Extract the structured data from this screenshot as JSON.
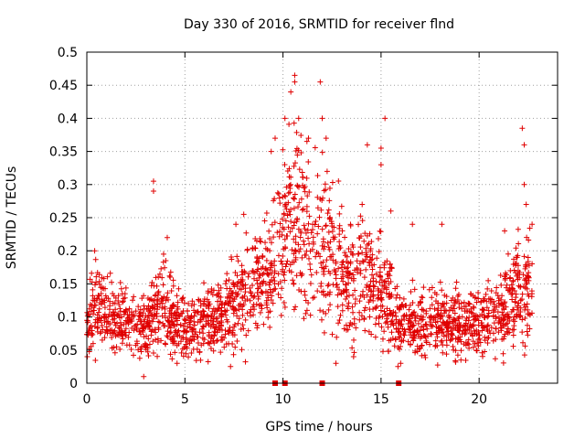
{
  "chart_data": {
    "type": "scatter",
    "title": "Day 330 of 2016, SRMTID for receiver flnd",
    "xlabel": "GPS time / hours",
    "ylabel": "SRMTID / TECUs",
    "xlim": [
      0,
      24
    ],
    "ylim": [
      0,
      0.5
    ],
    "x_ticks": [
      0,
      5,
      10,
      15,
      20
    ],
    "y_ticks": [
      0,
      0.05,
      0.1,
      0.15,
      0.2,
      0.25,
      0.3,
      0.35,
      0.4,
      0.45,
      0.5
    ],
    "grid": true,
    "marker": "+",
    "color": "#e00000",
    "series": [
      {
        "name": "SRMTID",
        "trend": [
          [
            0.0,
            0.09
          ],
          [
            0.5,
            0.12
          ],
          [
            1.0,
            0.1
          ],
          [
            1.5,
            0.095
          ],
          [
            2.0,
            0.1
          ],
          [
            2.5,
            0.09
          ],
          [
            3.0,
            0.08
          ],
          [
            3.5,
            0.11
          ],
          [
            4.0,
            0.12
          ],
          [
            4.5,
            0.09
          ],
          [
            5.0,
            0.085
          ],
          [
            5.5,
            0.09
          ],
          [
            6.0,
            0.1
          ],
          [
            6.5,
            0.1
          ],
          [
            7.0,
            0.11
          ],
          [
            7.5,
            0.12
          ],
          [
            8.0,
            0.13
          ],
          [
            8.5,
            0.15
          ],
          [
            9.0,
            0.15
          ],
          [
            9.5,
            0.18
          ],
          [
            10.0,
            0.22
          ],
          [
            10.5,
            0.26
          ],
          [
            11.0,
            0.24
          ],
          [
            11.5,
            0.22
          ],
          [
            12.0,
            0.22
          ],
          [
            12.5,
            0.2
          ],
          [
            13.0,
            0.16
          ],
          [
            13.5,
            0.15
          ],
          [
            14.0,
            0.17
          ],
          [
            14.5,
            0.15
          ],
          [
            15.0,
            0.14
          ],
          [
            15.5,
            0.12
          ],
          [
            16.0,
            0.09
          ],
          [
            16.5,
            0.09
          ],
          [
            17.0,
            0.09
          ],
          [
            17.5,
            0.095
          ],
          [
            18.0,
            0.09
          ],
          [
            18.5,
            0.085
          ],
          [
            19.0,
            0.09
          ],
          [
            19.5,
            0.09
          ],
          [
            20.0,
            0.09
          ],
          [
            20.5,
            0.1
          ],
          [
            21.0,
            0.1
          ],
          [
            21.5,
            0.12
          ],
          [
            22.0,
            0.15
          ],
          [
            22.5,
            0.15
          ],
          [
            22.7,
            0.14
          ]
        ],
        "spikes": [
          [
            0.4,
            0.2
          ],
          [
            2.9,
            0.01
          ],
          [
            3.4,
            0.305
          ],
          [
            3.4,
            0.29
          ],
          [
            4.1,
            0.22
          ],
          [
            7.6,
            0.24
          ],
          [
            8.0,
            0.255
          ],
          [
            9.4,
            0.35
          ],
          [
            9.6,
            0.37
          ],
          [
            10.1,
            0.4
          ],
          [
            10.4,
            0.44
          ],
          [
            10.6,
            0.465
          ],
          [
            10.6,
            0.455
          ],
          [
            10.8,
            0.4
          ],
          [
            11.3,
            0.37
          ],
          [
            11.9,
            0.455
          ],
          [
            12.0,
            0.4
          ],
          [
            12.2,
            0.37
          ],
          [
            14.3,
            0.36
          ],
          [
            15.0,
            0.33
          ],
          [
            15.2,
            0.4
          ],
          [
            15.0,
            0.355
          ],
          [
            15.5,
            0.26
          ],
          [
            16.6,
            0.24
          ],
          [
            18.1,
            0.24
          ],
          [
            21.3,
            0.23
          ],
          [
            22.2,
            0.385
          ],
          [
            22.3,
            0.36
          ],
          [
            22.3,
            0.3
          ],
          [
            22.4,
            0.27
          ],
          [
            22.7,
            0.24
          ],
          [
            13.6,
            0.04
          ],
          [
            12.7,
            0.03
          ],
          [
            16.0,
            0.03
          ],
          [
            4.6,
            0.03
          ]
        ],
        "axis_markers": [
          9.6,
          10.1,
          12.0,
          15.9
        ]
      }
    ]
  }
}
